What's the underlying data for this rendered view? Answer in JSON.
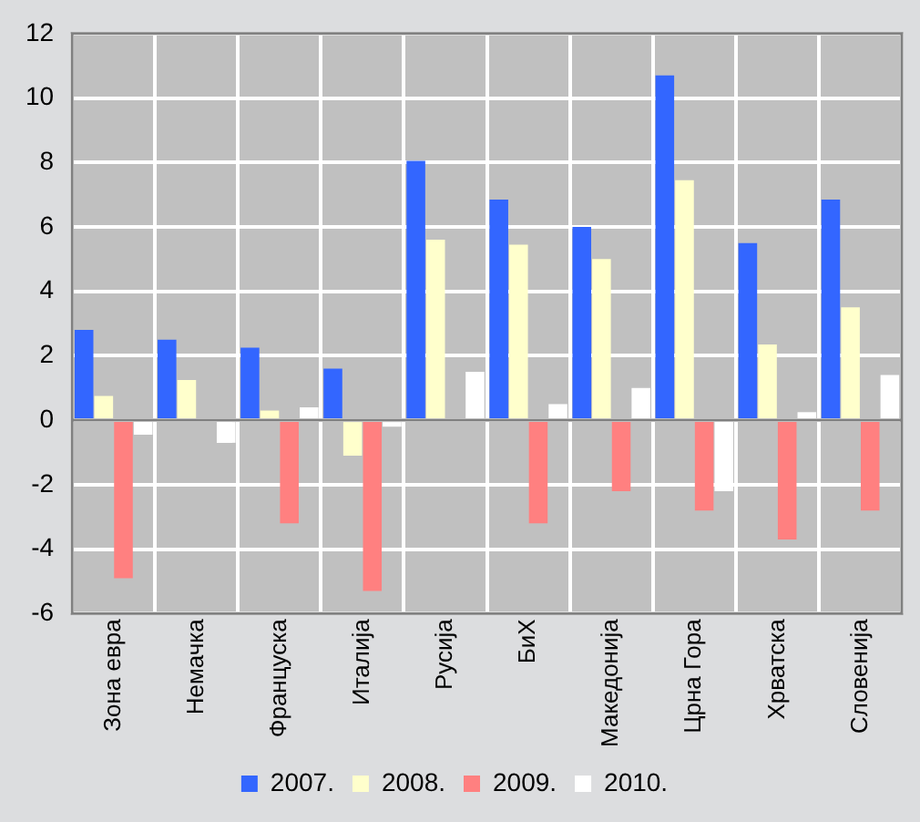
{
  "chart_data": {
    "type": "bar",
    "categories": [
      "Зона евра",
      "Немачка",
      "Француска",
      "Италија",
      "Русија",
      "БиХ",
      "Македонија",
      "Црна Гора",
      "Хрватска",
      "Словенија"
    ],
    "series": [
      {
        "name": "2007.",
        "color": "#3366ff",
        "values": [
          2.8,
          2.5,
          2.25,
          1.6,
          8.05,
          6.85,
          6.0,
          10.7,
          5.5,
          6.85
        ]
      },
      {
        "name": "2008.",
        "color": "#ffffcc",
        "values": [
          0.75,
          1.25,
          0.3,
          -1.1,
          5.6,
          5.45,
          5.0,
          7.45,
          2.35,
          3.5
        ]
      },
      {
        "name": "2009.",
        "color": "#ff8080",
        "values": [
          -4.9,
          null,
          -3.2,
          -5.3,
          null,
          -3.2,
          -2.2,
          -2.8,
          -3.7,
          -2.8
        ]
      },
      {
        "name": "2010.",
        "color": "#ffffff",
        "values": [
          -0.45,
          -0.7,
          0.4,
          -0.2,
          1.5,
          0.5,
          1.0,
          -2.2,
          0.25,
          1.4
        ]
      }
    ],
    "ylim": [
      -6,
      12
    ],
    "yticks": [
      -6,
      -4,
      -2,
      0,
      2,
      4,
      6,
      8,
      10,
      12
    ],
    "grid": true,
    "legend": "bottom"
  }
}
